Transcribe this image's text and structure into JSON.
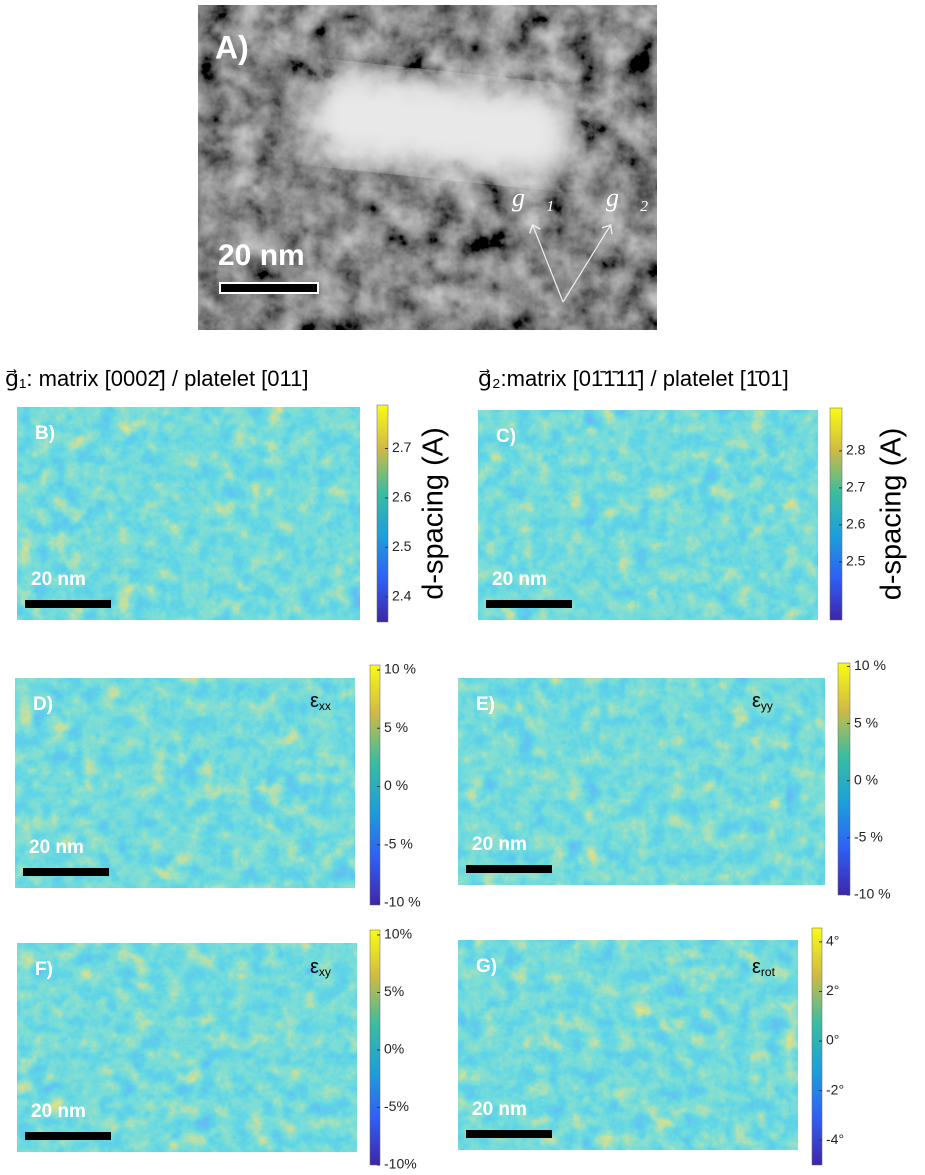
{
  "panel_a": {
    "label": "A)",
    "scale_bar": "20 nm",
    "vectors": [
      "g⃗₁",
      "g⃗₂"
    ]
  },
  "headings": [
    "g⃗₁: matrix [0002̄] / platelet [011]",
    "g⃗₂:matrix [01̄1̄11̄] / platelet [1̄01]"
  ],
  "panels": [
    {
      "label": "B)",
      "scale_bar": "20 nm",
      "colorbar": {
        "label": "d-spacing (A)",
        "lim": [
          2.349,
          2.788
        ],
        "ticks": [
          2.4,
          2.5,
          2.6,
          2.7
        ]
      }
    },
    {
      "label": "C)",
      "scale_bar": "20 nm",
      "colorbar": {
        "label": "d-spacing (A)",
        "lim": [
          2.343,
          2.916
        ],
        "ticks": [
          2.5,
          2.6,
          2.7,
          2.8
        ]
      }
    },
    {
      "label": "D)",
      "scale_bar": "20 nm",
      "component": {
        "symbol": "ε",
        "index": "xx"
      },
      "colorbar": {
        "lim": [
          -10.17,
          10.43
        ],
        "ticks": [
          {
            "value": 10,
            "label": "10 %"
          },
          {
            "value": 5,
            "label": "5 %"
          },
          {
            "value": 0,
            "label": "0 %"
          },
          {
            "value": -5,
            "label": "-5 %"
          },
          {
            "value": -10,
            "label": "-10 %"
          }
        ]
      }
    },
    {
      "label": "E)",
      "scale_bar": "20 nm",
      "component": {
        "symbol": "ε",
        "index": "yy"
      },
      "colorbar": {
        "lim": [
          -10,
          10.3
        ],
        "ticks": [
          {
            "value": 10,
            "label": "10 %"
          },
          {
            "value": 5,
            "label": "5 %"
          },
          {
            "value": 0,
            "label": "0 %"
          },
          {
            "value": -5,
            "label": "-5 %"
          },
          {
            "value": -10,
            "label": "-10 %"
          }
        ]
      }
    },
    {
      "label": "F)",
      "scale_bar": "20 nm",
      "component": {
        "symbol": "ε",
        "index": "xy"
      },
      "colorbar": {
        "lim": [
          -10,
          10.43
        ],
        "ticks": [
          {
            "value": 10,
            "label": "10%"
          },
          {
            "value": 5,
            "label": "5%"
          },
          {
            "value": 0,
            "label": "0%"
          },
          {
            "value": -5,
            "label": "-5%"
          },
          {
            "value": -10,
            "label": "-10%"
          }
        ]
      }
    },
    {
      "label": "G)",
      "scale_bar": "20 nm",
      "component": {
        "symbol": "ε",
        "index": "rot"
      },
      "colorbar": {
        "lim": [
          -5.0,
          4.56
        ],
        "ticks": [
          {
            "value": 4,
            "label": "4°"
          },
          {
            "value": 2,
            "label": "2°"
          },
          {
            "value": 0,
            "label": "0°"
          },
          {
            "value": -2,
            "label": "-2°"
          },
          {
            "value": -4,
            "label": "-4°"
          }
        ]
      }
    }
  ]
}
